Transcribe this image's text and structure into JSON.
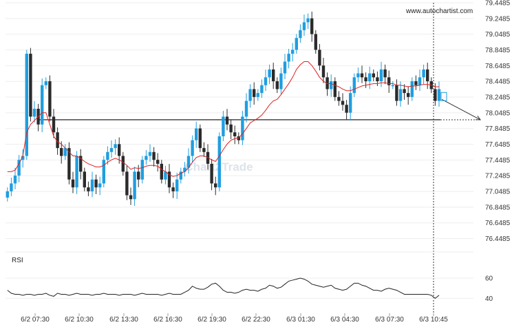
{
  "brand_text": "www.autochartist.com",
  "watermark_text": "Chart2Trade",
  "colors": {
    "bull": "#1f9ee0",
    "bear": "#2b2b2b",
    "ma": "#e02020",
    "level": "#333333",
    "grid": "#eeeeee"
  },
  "chart_data": {
    "type": "candlestick",
    "price_axis": {
      "ylim": [
        76.3485,
        79.4485
      ],
      "ticks": [
        "79.4485",
        "79.2485",
        "79.0485",
        "78.8485",
        "78.6485",
        "78.4485",
        "78.2485",
        "78.0485",
        "77.8485",
        "77.6485",
        "77.4485",
        "77.2485",
        "77.0485",
        "76.8485",
        "76.6485",
        "76.4485"
      ]
    },
    "x_axis": {
      "ticks": [
        "6/2 07:30",
        "6/2 10:30",
        "6/2 13:30",
        "6/2 16:30",
        "6/2 19:30",
        "6/2 22:30",
        "6/3 01:30",
        "6/3 04:30",
        "6/3 07:30",
        "6/3 10:45"
      ]
    },
    "support_level": 77.96,
    "forecast": {
      "from": 78.22,
      "to": 77.96
    },
    "close_series": [
      77.05,
      77.15,
      77.25,
      77.45,
      77.5,
      78.8,
      78.0,
      78.1,
      77.9,
      78.4,
      78.45,
      78.0,
      77.8,
      77.6,
      77.5,
      77.6,
      77.2,
      77.1,
      77.5,
      77.3,
      77.1,
      77.05,
      77.2,
      77.1,
      77.15,
      77.45,
      77.55,
      77.6,
      77.65,
      77.5,
      77.3,
      77.0,
      76.95,
      77.3,
      77.2,
      77.45,
      77.5,
      77.55,
      77.45,
      77.4,
      77.2,
      77.3,
      77.1,
      77.05,
      77.2,
      77.3,
      77.35,
      77.5,
      77.7,
      77.85,
      77.6,
      77.55,
      77.4,
      77.15,
      77.1,
      77.75,
      78.0,
      77.9,
      77.8,
      77.75,
      77.7,
      78.0,
      78.2,
      78.35,
      78.25,
      78.3,
      78.4,
      78.5,
      78.6,
      78.45,
      78.35,
      78.55,
      78.7,
      78.8,
      78.85,
      79.0,
      79.1,
      79.2,
      79.25,
      79.05,
      78.85,
      78.65,
      78.5,
      78.35,
      78.45,
      78.25,
      78.2,
      78.15,
      78.05,
      78.3,
      78.5,
      78.55,
      78.5,
      78.45,
      78.55,
      78.5,
      78.45,
      78.6,
      78.5,
      78.4,
      78.4,
      78.2,
      78.35,
      78.3,
      78.25,
      78.45,
      78.4,
      78.5,
      78.6,
      78.45,
      78.35,
      78.2,
      78.35
    ],
    "ma_series": [
      77.3,
      77.3,
      77.32,
      77.4,
      77.5,
      77.8,
      77.9,
      77.95,
      78.0,
      78.05,
      78.05,
      77.9,
      77.75,
      77.68,
      77.65,
      77.6,
      77.55,
      77.5,
      77.5,
      77.47,
      77.43,
      77.4,
      77.38,
      77.36,
      77.36,
      77.38,
      77.42,
      77.45,
      77.47,
      77.45,
      77.42,
      77.38,
      77.33,
      77.35,
      77.34,
      77.35,
      77.37,
      77.38,
      77.38,
      77.37,
      77.33,
      77.3,
      77.26,
      77.24,
      77.25,
      77.28,
      77.3,
      77.35,
      77.42,
      77.48,
      77.5,
      77.5,
      77.48,
      77.45,
      77.43,
      77.5,
      77.58,
      77.65,
      77.7,
      77.72,
      77.73,
      77.78,
      77.85,
      77.92,
      77.95,
      77.98,
      78.02,
      78.08,
      78.15,
      78.2,
      78.22,
      78.28,
      78.35,
      78.42,
      78.5,
      78.6,
      78.66,
      78.7,
      78.7,
      78.65,
      78.58,
      78.5,
      78.45,
      78.42,
      78.42,
      78.4,
      78.38,
      78.35,
      78.33,
      78.33,
      78.35,
      78.37,
      78.39,
      78.4,
      78.41,
      78.42,
      78.42,
      78.43,
      78.43,
      78.42,
      78.42,
      78.4,
      78.4,
      78.39,
      78.38,
      78.39,
      78.39,
      78.4,
      78.41,
      78.41,
      78.4,
      78.38,
      78.38
    ],
    "rsi": {
      "label": "RSI",
      "ylim": [
        30,
        75
      ],
      "ticks": [
        60,
        40
      ],
      "values": [
        48,
        45,
        44,
        44,
        43,
        44,
        44,
        43,
        44,
        44,
        45,
        43,
        42,
        45,
        44,
        44,
        43,
        44,
        45,
        44,
        44,
        44,
        43,
        44,
        44,
        45,
        44,
        44,
        44,
        43,
        44,
        44,
        44,
        43,
        44,
        45,
        44,
        44,
        44,
        44,
        43,
        44,
        45,
        44,
        44,
        44,
        46,
        48,
        52,
        50,
        49,
        49,
        51,
        54,
        55,
        52,
        48,
        46,
        46,
        45,
        46,
        48,
        49,
        48,
        48,
        47,
        49,
        50,
        53,
        52,
        50,
        51,
        54,
        57,
        58,
        59,
        60,
        59,
        57,
        54,
        53,
        52,
        51,
        52,
        53,
        50,
        49,
        48,
        49,
        52,
        55,
        55,
        53,
        52,
        50,
        48,
        48,
        47,
        49,
        50,
        49,
        48,
        46,
        44,
        44,
        44,
        44,
        44,
        44,
        44,
        43,
        40,
        43
      ]
    }
  }
}
